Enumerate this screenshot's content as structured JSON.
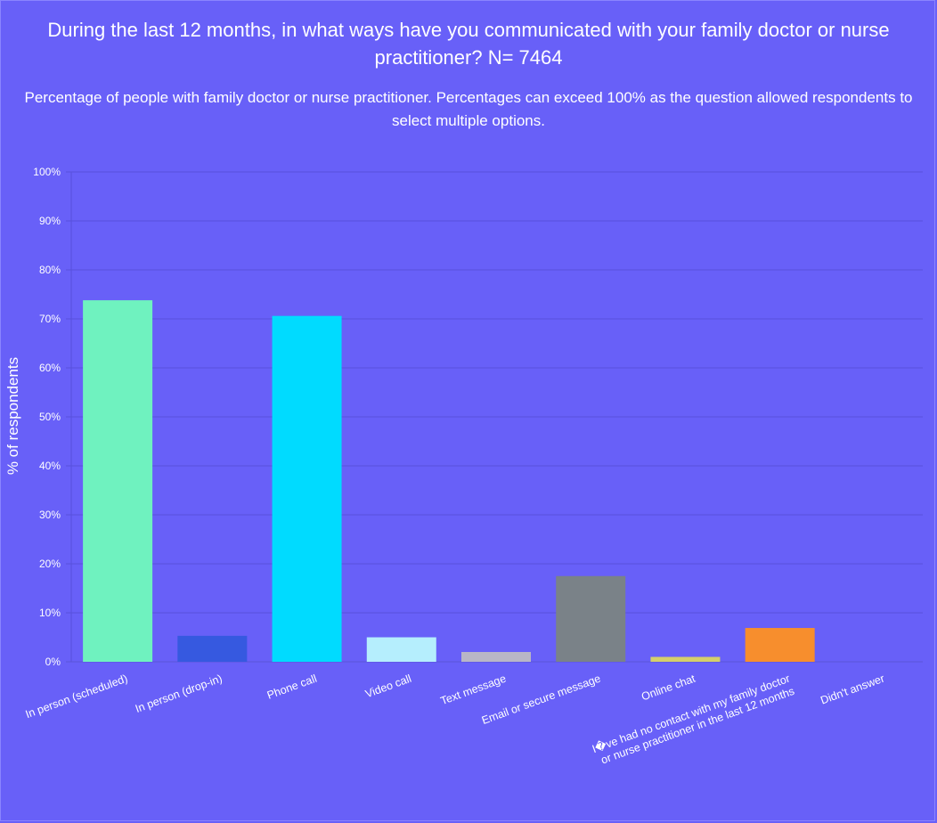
{
  "chart_data": {
    "type": "bar",
    "title": "During the last 12 months, in what ways have you communicated with your family doctor or nurse practitioner? N= 7464",
    "subtitle": "Percentage of people with family doctor or nurse practitioner. Percentages can exceed 100% as the question allowed respondents to select multiple options.",
    "xlabel": "",
    "ylabel": "% of respondents",
    "ylim": [
      0,
      100
    ],
    "yticks": [
      "0%",
      "10%",
      "20%",
      "30%",
      "40%",
      "50%",
      "60%",
      "70%",
      "80%",
      "90%",
      "100%"
    ],
    "grid": true,
    "legend": "none",
    "categories": [
      [
        "In person (scheduled)"
      ],
      [
        "In person (drop-in)"
      ],
      [
        "Phone call"
      ],
      [
        "Video call"
      ],
      [
        "Text message"
      ],
      [
        "Email or secure message"
      ],
      [
        "Online chat"
      ],
      [
        "I�ve had no contact with my family doctor",
        "or nurse practitioner in the last 12 months"
      ],
      [
        "Didn't answer"
      ]
    ],
    "values": [
      73.8,
      5.3,
      70.6,
      5.0,
      2.0,
      17.5,
      1.0,
      6.9,
      0
    ],
    "colors": [
      "#6ff2bf",
      "#3659e0",
      "#00dbff",
      "#b5eefd",
      "#b9b6c6",
      "#7a8288",
      "#d4cf6b",
      "#f78e2d",
      "#6860f8"
    ]
  }
}
